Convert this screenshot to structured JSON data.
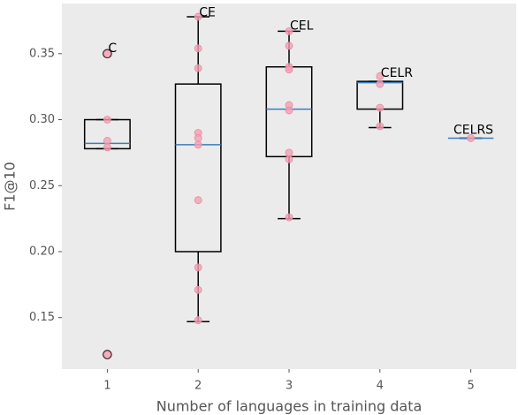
{
  "chart_data": {
    "type": "box",
    "x_label": "Number of languages in training data",
    "y_label": "F1@10",
    "x": [
      1,
      2,
      3,
      4,
      5
    ],
    "xlim": [
      0.5,
      5.5
    ],
    "xticks": [
      1,
      2,
      3,
      4,
      5
    ],
    "ylim": [
      0.111,
      0.388
    ],
    "yticks": [
      0.15,
      {
        "value": 0.2,
        "label": "0.20"
      },
      0.25,
      {
        "value": 0.3,
        "label": "0.30"
      },
      0.35
    ],
    "grid": false,
    "box_color": "#000000",
    "median_color": "#3b7dbf",
    "point_color": "#f4a0b4",
    "boxes": [
      {
        "q1": 0.278,
        "median": 0.282,
        "q3": 0.3,
        "whislo": 0.278,
        "whishi": 0.3,
        "fliers": [
          0.35,
          0.122
        ],
        "points": [
          0.35,
          0.3,
          0.284,
          0.279,
          0.122
        ]
      },
      {
        "q1": 0.2,
        "median": 0.281,
        "q3": 0.327,
        "whislo": 0.147,
        "whishi": 0.378,
        "fliers": [],
        "points": [
          0.378,
          0.354,
          0.339,
          0.29,
          0.286,
          0.281,
          0.239,
          0.188,
          0.171,
          0.148
        ]
      },
      {
        "q1": 0.272,
        "median": 0.308,
        "q3": 0.34,
        "whislo": 0.225,
        "whishi": 0.367,
        "fliers": [],
        "points": [
          0.367,
          0.356,
          0.34,
          0.338,
          0.311,
          0.307,
          0.275,
          0.27,
          0.226
        ]
      },
      {
        "q1": 0.308,
        "median": 0.328,
        "q3": 0.329,
        "whislo": 0.294,
        "whishi": 0.329,
        "fliers": [],
        "points": [
          0.333,
          0.327,
          0.309,
          0.295
        ]
      },
      {
        "q1": 0.286,
        "median": 0.286,
        "q3": 0.286,
        "whislo": 0.286,
        "whishi": 0.286,
        "fliers": [],
        "points": [
          0.286
        ]
      }
    ],
    "annotations": [
      {
        "text": "C",
        "x": 1,
        "y": 0.352
      },
      {
        "text": "CE",
        "x": 2,
        "y": 0.379
      },
      {
        "text": "CEL",
        "x": 3,
        "y": 0.369
      },
      {
        "text": "CELR",
        "x": 4,
        "y": 0.333
      },
      {
        "text": "CELRS",
        "x": 4.8,
        "y": 0.29
      }
    ]
  }
}
